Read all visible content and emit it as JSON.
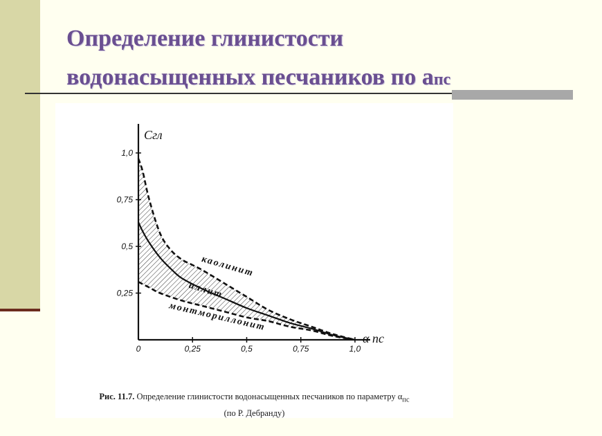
{
  "slide": {
    "title_line1": "Определение глинистости",
    "title_line2": "водонасыщенных песчаников по a",
    "title_sub": "пс"
  },
  "figure": {
    "caption_number": "Рис. 11.7.",
    "caption_text": "Определение глинистости водонасыщенных песчаников по параметру α",
    "caption_sub": "пс",
    "caption_line2": "(по Р. Дебранду)"
  },
  "chart_data": {
    "type": "line",
    "xlabel": "α пс",
    "ylabel": "Cгл",
    "xlim": [
      0,
      1.0
    ],
    "ylim": [
      0,
      1.0
    ],
    "x_ticks": [
      "0",
      "0,25",
      "0,5",
      "0,75",
      "1,0"
    ],
    "y_ticks": [
      "0,25",
      "0,5",
      "0,75",
      "1,0"
    ],
    "grid": false,
    "series": [
      {
        "name": "каолинит",
        "style": "dashed",
        "points": [
          [
            0,
            0.97
          ],
          [
            0.02,
            0.9
          ],
          [
            0.05,
            0.75
          ],
          [
            0.1,
            0.57
          ],
          [
            0.15,
            0.48
          ],
          [
            0.2,
            0.43
          ],
          [
            0.25,
            0.4
          ],
          [
            0.3,
            0.37
          ],
          [
            0.4,
            0.3
          ],
          [
            0.5,
            0.23
          ],
          [
            0.6,
            0.16
          ],
          [
            0.7,
            0.11
          ],
          [
            0.8,
            0.07
          ],
          [
            0.9,
            0.03
          ],
          [
            1.0,
            0
          ]
        ]
      },
      {
        "name": "иллит",
        "style": "solid",
        "points": [
          [
            0,
            0.63
          ],
          [
            0.02,
            0.58
          ],
          [
            0.05,
            0.52
          ],
          [
            0.1,
            0.44
          ],
          [
            0.15,
            0.38
          ],
          [
            0.2,
            0.33
          ],
          [
            0.3,
            0.27
          ],
          [
            0.4,
            0.22
          ],
          [
            0.5,
            0.17
          ],
          [
            0.6,
            0.13
          ],
          [
            0.7,
            0.09
          ],
          [
            0.8,
            0.06
          ],
          [
            0.9,
            0.025
          ],
          [
            1.0,
            0
          ]
        ]
      },
      {
        "name": "монтмориллонит",
        "style": "dashed",
        "points": [
          [
            0,
            0.31
          ],
          [
            0.05,
            0.28
          ],
          [
            0.1,
            0.25
          ],
          [
            0.2,
            0.21
          ],
          [
            0.3,
            0.18
          ],
          [
            0.4,
            0.15
          ],
          [
            0.5,
            0.12
          ],
          [
            0.6,
            0.1
          ],
          [
            0.7,
            0.07
          ],
          [
            0.8,
            0.05
          ],
          [
            0.9,
            0.02
          ],
          [
            1.0,
            0
          ]
        ]
      }
    ]
  }
}
